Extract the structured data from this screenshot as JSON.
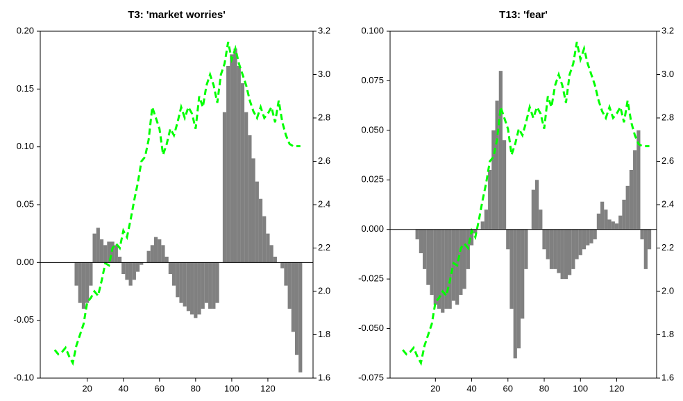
{
  "chart_data": [
    {
      "type": "bar",
      "title": "T3: 'market worries'",
      "x": [
        2,
        4,
        6,
        8,
        10,
        12,
        14,
        16,
        18,
        20,
        22,
        24,
        26,
        28,
        30,
        32,
        34,
        36,
        38,
        40,
        42,
        44,
        46,
        48,
        50,
        52,
        54,
        56,
        58,
        60,
        62,
        64,
        66,
        68,
        70,
        72,
        74,
        76,
        78,
        80,
        82,
        84,
        86,
        88,
        90,
        92,
        94,
        96,
        98,
        100,
        102,
        104,
        106,
        108,
        110,
        112,
        114,
        116,
        118,
        120,
        122,
        124,
        126,
        128,
        130,
        132,
        134,
        136,
        138
      ],
      "xlim": [
        -6,
        145
      ],
      "xticks": [
        20,
        40,
        60,
        80,
        100,
        120
      ],
      "ylim": [
        -0.1,
        0.2
      ],
      "yticks": [
        {
          "value": -0.1,
          "label": "-0.10"
        },
        -0.05,
        {
          "value": 0,
          "label": "0.00"
        },
        0.05,
        {
          "value": 0.1,
          "label": "0.10"
        },
        0.15,
        {
          "value": 0.2,
          "label": "0.20"
        }
      ],
      "y2lim": [
        1.6,
        3.2
      ],
      "y2ticks": [
        1.6,
        1.8,
        {
          "value": 2,
          "label": "2.0"
        },
        2.2,
        2.4,
        2.6,
        2.8,
        {
          "value": 3,
          "label": "3.0"
        },
        3.2
      ],
      "series": [
        {
          "type": "bar",
          "color": "#808080",
          "values": [
            0,
            0,
            0,
            0,
            0,
            0,
            -0.02,
            -0.035,
            -0.04,
            -0.035,
            -0.02,
            0.025,
            0.03,
            0.02,
            0.015,
            0.018,
            0.018,
            0.015,
            0.005,
            -0.01,
            -0.015,
            -0.02,
            -0.015,
            -0.008,
            -0.002,
            0,
            0.01,
            0.015,
            0.022,
            0.02,
            0.015,
            0.005,
            -0.01,
            -0.02,
            -0.03,
            -0.035,
            -0.038,
            -0.042,
            -0.045,
            -0.048,
            -0.045,
            -0.04,
            -0.035,
            -0.04,
            -0.04,
            -0.035,
            0,
            0.13,
            0.17,
            0.18,
            0.185,
            0.17,
            0.155,
            0.13,
            0.11,
            0.09,
            0.07,
            0.055,
            0.04,
            0.025,
            0.015,
            0.005,
            0,
            -0.005,
            -0.02,
            -0.04,
            -0.06,
            -0.08,
            -0.095
          ]
        },
        {
          "type": "line",
          "axis": "y2",
          "color": "#00ff00",
          "values": [
            1.73,
            1.71,
            1.72,
            1.74,
            1.7,
            1.67,
            1.75,
            1.8,
            1.85,
            1.95,
            1.97,
            2.0,
            1.98,
            2.05,
            2.13,
            2.12,
            2.2,
            2.22,
            2.2,
            2.28,
            2.25,
            2.33,
            2.42,
            2.5,
            2.6,
            2.62,
            2.7,
            2.85,
            2.8,
            2.75,
            2.63,
            2.68,
            2.75,
            2.72,
            2.78,
            2.85,
            2.8,
            2.85,
            2.82,
            2.75,
            2.9,
            2.85,
            2.95,
            3.0,
            2.95,
            2.87,
            3.0,
            3.05,
            3.15,
            3.07,
            3.12,
            3.05,
            3.0,
            2.95,
            2.88,
            2.83,
            2.8,
            2.85,
            2.8,
            2.82,
            2.85,
            2.78,
            2.88,
            2.78,
            2.72,
            2.68,
            2.67,
            2.67,
            2.67
          ]
        }
      ]
    },
    {
      "type": "bar",
      "title": "T13: 'fear'",
      "x": [
        2,
        4,
        6,
        8,
        10,
        12,
        14,
        16,
        18,
        20,
        22,
        24,
        26,
        28,
        30,
        32,
        34,
        36,
        38,
        40,
        42,
        44,
        46,
        48,
        50,
        52,
        54,
        56,
        58,
        60,
        62,
        64,
        66,
        68,
        70,
        72,
        74,
        76,
        78,
        80,
        82,
        84,
        86,
        88,
        90,
        92,
        94,
        96,
        98,
        100,
        102,
        104,
        106,
        108,
        110,
        112,
        114,
        116,
        118,
        120,
        122,
        124,
        126,
        128,
        130,
        132,
        134,
        136,
        138
      ],
      "xlim": [
        -5,
        142
      ],
      "xticks": [
        20,
        40,
        60,
        80,
        100,
        120
      ],
      "ylim": [
        -0.075,
        0.1
      ],
      "yticks": [
        -0.075,
        {
          "value": -0.05,
          "label": "-0.050"
        },
        -0.025,
        {
          "value": 0,
          "label": "0.000"
        },
        0.025,
        {
          "value": 0.05,
          "label": "0.050"
        },
        0.075,
        {
          "value": 0.1,
          "label": "0.100"
        }
      ],
      "y2lim": [
        1.6,
        3.2
      ],
      "y2ticks": [
        1.6,
        1.8,
        {
          "value": 2,
          "label": "2.0"
        },
        2.2,
        2.4,
        2.6,
        2.8,
        {
          "value": 3,
          "label": "3.0"
        },
        3.2
      ],
      "series": [
        {
          "type": "bar",
          "color": "#808080",
          "values": [
            0,
            0,
            0,
            0,
            -0.005,
            -0.012,
            -0.02,
            -0.028,
            -0.033,
            -0.038,
            -0.04,
            -0.042,
            -0.04,
            -0.04,
            -0.036,
            -0.038,
            -0.033,
            -0.03,
            -0.02,
            -0.008,
            -0.002,
            0,
            0.004,
            0.01,
            0.03,
            0.05,
            0.065,
            0.08,
            0.045,
            -0.01,
            -0.04,
            -0.065,
            -0.06,
            -0.045,
            -0.02,
            0,
            0.02,
            0.025,
            0.01,
            -0.01,
            -0.015,
            -0.02,
            -0.02,
            -0.022,
            -0.025,
            -0.025,
            -0.023,
            -0.02,
            -0.015,
            -0.013,
            -0.01,
            -0.008,
            -0.007,
            -0.005,
            0.008,
            0.014,
            0.01,
            0.005,
            0.004,
            0.003,
            0.007,
            0.015,
            0.022,
            0.03,
            0.04,
            0.05,
            -0.005,
            -0.02,
            -0.01
          ]
        },
        {
          "type": "line",
          "axis": "y2",
          "color": "#00ff00",
          "values": [
            1.73,
            1.71,
            1.72,
            1.74,
            1.7,
            1.67,
            1.75,
            1.8,
            1.85,
            1.95,
            1.97,
            2.0,
            1.98,
            2.05,
            2.13,
            2.12,
            2.2,
            2.22,
            2.2,
            2.28,
            2.25,
            2.33,
            2.42,
            2.5,
            2.6,
            2.62,
            2.7,
            2.85,
            2.8,
            2.75,
            2.63,
            2.68,
            2.75,
            2.72,
            2.78,
            2.85,
            2.8,
            2.85,
            2.82,
            2.75,
            2.9,
            2.85,
            2.95,
            3.0,
            2.95,
            2.87,
            3.0,
            3.05,
            3.15,
            3.07,
            3.12,
            3.05,
            3.0,
            2.95,
            2.88,
            2.83,
            2.8,
            2.85,
            2.8,
            2.82,
            2.85,
            2.78,
            2.88,
            2.78,
            2.72,
            2.68,
            2.67,
            2.67,
            2.67
          ]
        }
      ]
    }
  ]
}
